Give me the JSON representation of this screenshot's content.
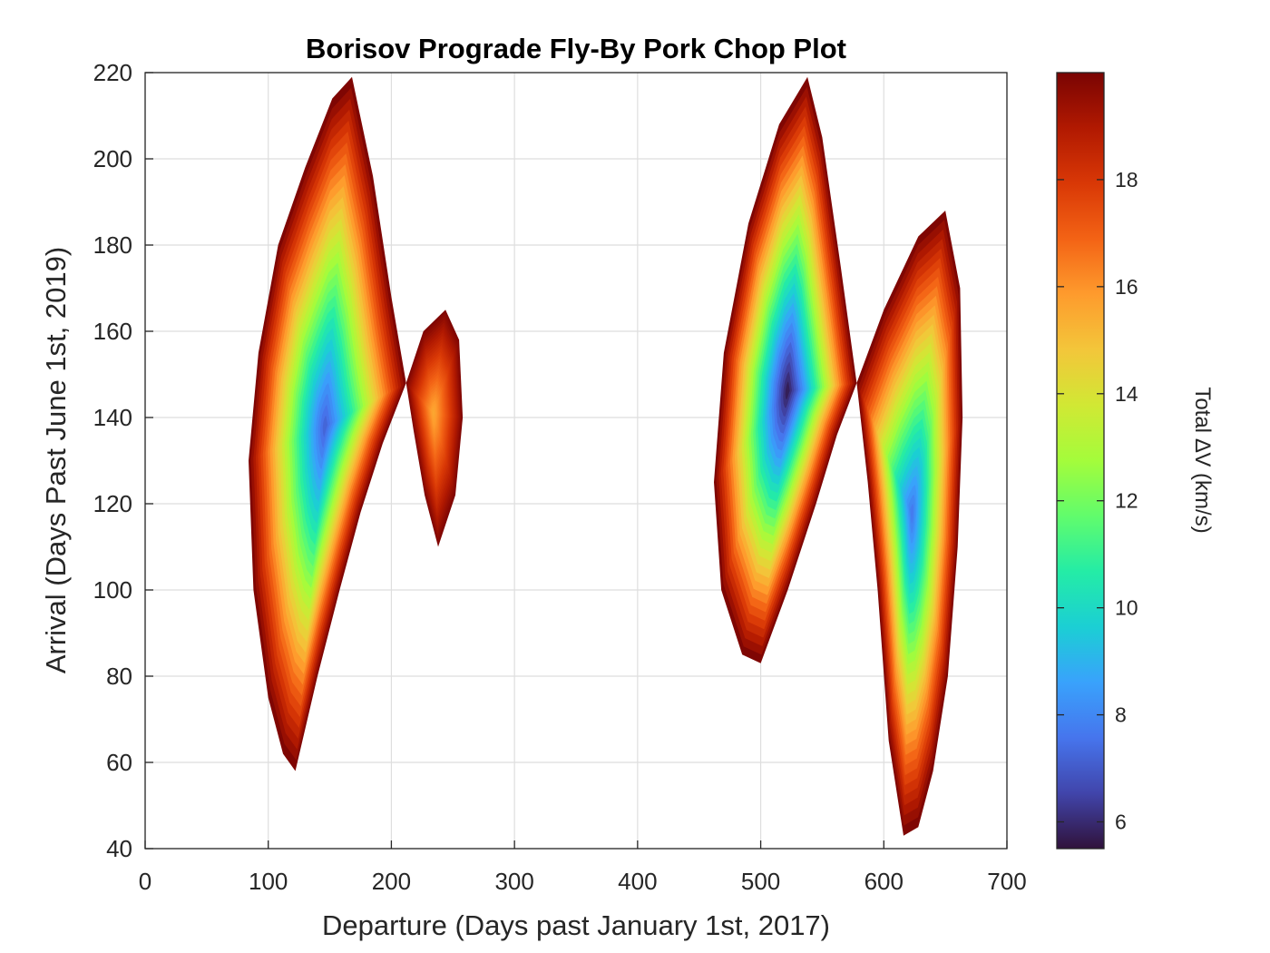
{
  "chart_data": {
    "type": "heatmap",
    "title": "Borisov Prograde Fly-By Pork Chop Plot",
    "xlabel": "Departure (Days past January 1st, 2017)",
    "ylabel": "Arrival (Days Past June 1st, 2019)",
    "xlim": [
      0,
      700
    ],
    "ylim": [
      40,
      220
    ],
    "xticks": [
      "0",
      "100",
      "200",
      "300",
      "400",
      "500",
      "600",
      "700"
    ],
    "yticks": [
      "40",
      "60",
      "80",
      "100",
      "120",
      "140",
      "160",
      "180",
      "200",
      "220"
    ],
    "grid": true,
    "colorbar": {
      "label": "Total ∆V (km/s)",
      "range": [
        5.5,
        20
      ],
      "ticks": [
        "6",
        "8",
        "10",
        "12",
        "14",
        "16",
        "18"
      ],
      "tick_values": [
        6,
        8,
        10,
        12,
        14,
        16,
        18
      ],
      "colormap": [
        "#30123b",
        "#4145ab",
        "#4675ed",
        "#39a2fc",
        "#1bcfd4",
        "#24eca6",
        "#61fc6c",
        "#a4fc3b",
        "#d1e834",
        "#f3c63a",
        "#fe9b2d",
        "#f36315",
        "#d93806",
        "#b11901",
        "#7a0403"
      ]
    },
    "regions": [
      {
        "name": "lobe-1-left",
        "outline": [
          [
            212,
            148
          ],
          [
            200,
            168
          ],
          [
            185,
            196
          ],
          [
            168,
            219
          ],
          [
            152,
            214
          ],
          [
            130,
            198
          ],
          [
            108,
            180
          ],
          [
            92,
            155
          ],
          [
            84,
            130
          ],
          [
            88,
            100
          ],
          [
            100,
            75
          ],
          [
            112,
            62
          ],
          [
            122,
            58
          ],
          [
            140,
            80
          ],
          [
            158,
            100
          ],
          [
            175,
            118
          ],
          [
            193,
            134
          ],
          [
            212,
            148
          ]
        ],
        "min_value": 7.0
      },
      {
        "name": "lobe-1-right",
        "outline": [
          [
            212,
            148
          ],
          [
            226,
            160
          ],
          [
            244,
            165
          ],
          [
            255,
            158
          ],
          [
            258,
            140
          ],
          [
            252,
            122
          ],
          [
            238,
            110
          ],
          [
            227,
            122
          ],
          [
            218,
            137
          ],
          [
            212,
            148
          ]
        ],
        "min_value": 15.5
      },
      {
        "name": "lobe-2-left",
        "outline": [
          [
            578,
            148
          ],
          [
            565,
            175
          ],
          [
            550,
            205
          ],
          [
            538,
            219
          ],
          [
            515,
            208
          ],
          [
            490,
            185
          ],
          [
            470,
            155
          ],
          [
            462,
            125
          ],
          [
            468,
            100
          ],
          [
            485,
            85
          ],
          [
            500,
            83
          ],
          [
            522,
            100
          ],
          [
            545,
            120
          ],
          [
            562,
            136
          ],
          [
            578,
            148
          ]
        ],
        "min_value": 5.5
      },
      {
        "name": "lobe-2-right",
        "outline": [
          [
            578,
            148
          ],
          [
            600,
            165
          ],
          [
            628,
            182
          ],
          [
            650,
            188
          ],
          [
            662,
            170
          ],
          [
            664,
            140
          ],
          [
            660,
            110
          ],
          [
            652,
            80
          ],
          [
            640,
            58
          ],
          [
            628,
            45
          ],
          [
            616,
            43
          ],
          [
            604,
            65
          ],
          [
            595,
            100
          ],
          [
            587,
            125
          ],
          [
            578,
            148
          ]
        ],
        "min_value": 7.5
      }
    ]
  }
}
